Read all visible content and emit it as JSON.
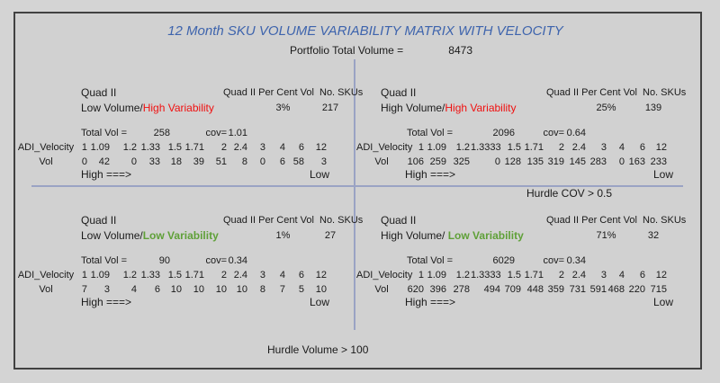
{
  "title": "12 Month SKU VOLUME VARIABILITY MATRIX WITH VELOCITY",
  "portfolio": {
    "label": "Portfolio Total Volume =",
    "value": "8473"
  },
  "hurdles": {
    "cov": "Hurdle COV > 0.5",
    "volume": "Hurdle Volume > 100"
  },
  "labels": {
    "quad": "Quad II",
    "percent_vol": "Quad II Per Cent Vol",
    "no_skus": "No. SKUs",
    "total_vol": "Total Vol =",
    "cov": "cov=",
    "adi": "ADI_Velocity",
    "vol": "Vol",
    "high": "High ===>",
    "low": "Low"
  },
  "colors": {
    "title_blue": "#3e64ad",
    "red": "#f01010",
    "green": "#5fa038",
    "divider": "#9aa3c4",
    "border": "#414141",
    "text": "#1a1a1a"
  },
  "quadrants": [
    {
      "id": "top-left",
      "volume_label": "Low Volume/",
      "variability_label": "High Variability",
      "variability_color": "red",
      "percent": "3%",
      "skus": "217",
      "total_vol": "258",
      "cov": "1.01",
      "adi_velocity": [
        "1",
        "1.09",
        "1.2",
        "1.33",
        "1.5",
        "1.71",
        "2",
        "2.4",
        "3",
        "4",
        "6",
        "12"
      ],
      "vol": [
        "0",
        "42",
        "0",
        "33",
        "18",
        "39",
        "51",
        "8",
        "0",
        "6",
        "58",
        "3"
      ]
    },
    {
      "id": "top-right",
      "volume_label": "High Volume/",
      "variability_label": "High Variability",
      "variability_color": "red",
      "percent": "25%",
      "skus": "139",
      "total_vol": "2096",
      "cov": "0.64",
      "adi_velocity": [
        "1",
        "1.09",
        "1.2",
        "1.3333",
        "1.5",
        "1.71",
        "2",
        "2.4",
        "3",
        "4",
        "6",
        "12"
      ],
      "vol": [
        "106",
        "259",
        "325",
        "0",
        "128",
        "135",
        "319",
        "145",
        "283",
        "0",
        "163",
        "233"
      ]
    },
    {
      "id": "bottom-left",
      "volume_label": "Low Volume/",
      "variability_label": "Low Variability",
      "variability_color": "green",
      "percent": "1%",
      "skus": "27",
      "total_vol": "90",
      "cov": "0.34",
      "adi_velocity": [
        "1",
        "1.09",
        "1.2",
        "1.33",
        "1.5",
        "1.71",
        "2",
        "2.4",
        "3",
        "4",
        "6",
        "12"
      ],
      "vol": [
        "7",
        "3",
        "4",
        "6",
        "10",
        "10",
        "10",
        "10",
        "8",
        "7",
        "5",
        "10"
      ]
    },
    {
      "id": "bottom-right",
      "volume_label": "High Volume/ ",
      "variability_label": "Low Variability",
      "variability_color": "green",
      "percent": "71%",
      "skus": "32",
      "total_vol": "6029",
      "cov": "0.34",
      "adi_velocity": [
        "1",
        "1.09",
        "1.2",
        "1.3333",
        "1.5",
        "1.71",
        "2",
        "2.4",
        "3",
        "4",
        "6",
        "12"
      ],
      "vol": [
        "620",
        "396",
        "278",
        "494",
        "709",
        "448",
        "359",
        "731",
        "591",
        "468",
        "220",
        "715"
      ]
    }
  ]
}
